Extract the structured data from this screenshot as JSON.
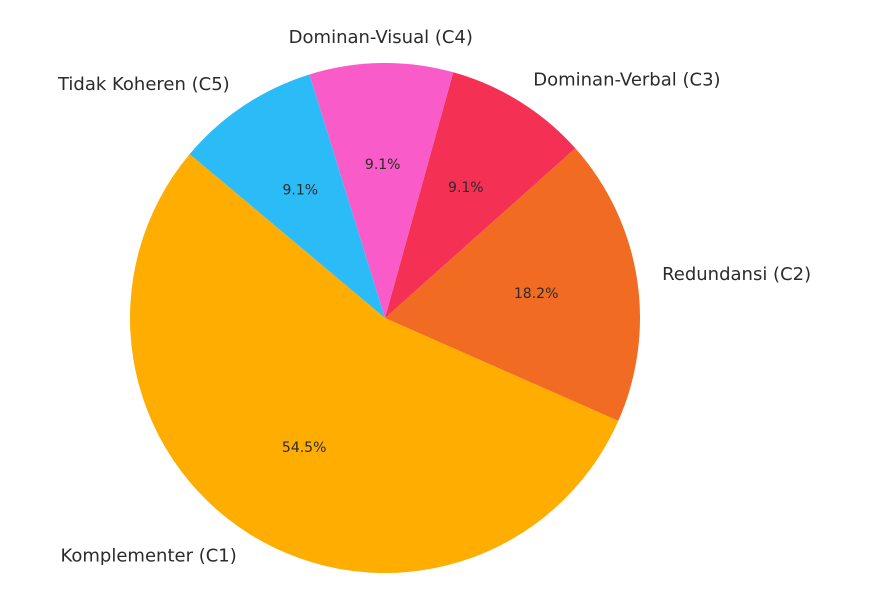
{
  "chart_data": {
    "type": "pie",
    "title": "",
    "slices": [
      {
        "label": "Komplementer (C1)",
        "value": 54.5,
        "display": "54.5%",
        "color": "#FFAD00"
      },
      {
        "label": "Redundansi (C2)",
        "value": 18.2,
        "display": "18.2%",
        "color": "#F26B22"
      },
      {
        "label": "Dominan-Verbal (C3)",
        "value": 9.1,
        "display": "9.1%",
        "color": "#F43154"
      },
      {
        "label": "Dominan-Visual (C4)",
        "value": 9.1,
        "display": "9.1%",
        "color": "#F95BC8"
      },
      {
        "label": "Tidak Koheren (C5)",
        "value": 9.1,
        "display": "9.1%",
        "color": "#2BBCF8"
      }
    ],
    "start_angle_deg": 140,
    "direction": "counterclockwise",
    "legend": "none"
  }
}
